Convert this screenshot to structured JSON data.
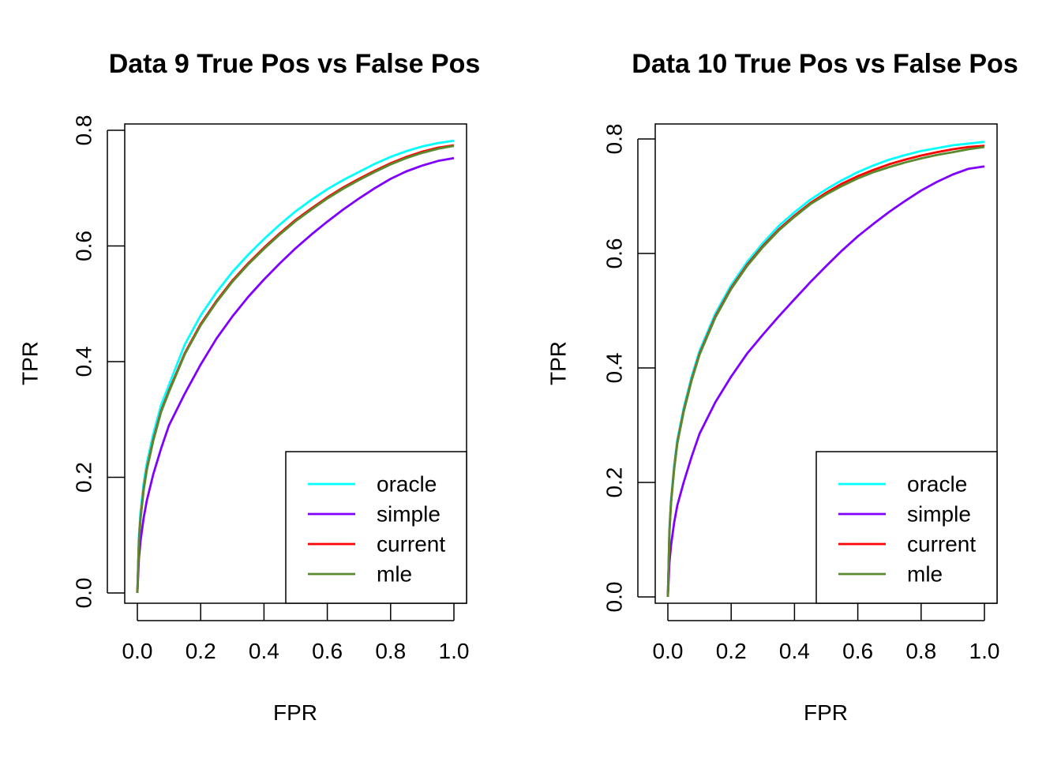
{
  "chart_data": [
    {
      "type": "line",
      "title": "Data 9 True Pos vs False Pos",
      "xlabel": "FPR",
      "ylabel": "TPR",
      "xlim": [
        0,
        1
      ],
      "ylim": [
        0,
        0.8
      ],
      "xticks": [
        "0.0",
        "0.2",
        "0.4",
        "0.6",
        "0.8",
        "1.0"
      ],
      "yticks": [
        "0.0",
        "0.2",
        "0.4",
        "0.6",
        "0.8"
      ],
      "legend_position": "bottom-right",
      "x": [
        0.0,
        0.005,
        0.01,
        0.02,
        0.03,
        0.05,
        0.075,
        0.1,
        0.15,
        0.2,
        0.25,
        0.3,
        0.35,
        0.4,
        0.45,
        0.5,
        0.55,
        0.6,
        0.65,
        0.7,
        0.75,
        0.8,
        0.85,
        0.9,
        0.95,
        1.0
      ],
      "series": [
        {
          "name": "oracle",
          "color": "#00FFFF",
          "values": [
            0.0,
            0.1,
            0.14,
            0.19,
            0.225,
            0.275,
            0.325,
            0.36,
            0.43,
            0.48,
            0.52,
            0.555,
            0.585,
            0.612,
            0.637,
            0.66,
            0.68,
            0.698,
            0.714,
            0.728,
            0.742,
            0.754,
            0.764,
            0.772,
            0.778,
            0.782
          ]
        },
        {
          "name": "simple",
          "color": "#8000FF",
          "values": [
            0.0,
            0.06,
            0.09,
            0.13,
            0.16,
            0.205,
            0.25,
            0.29,
            0.345,
            0.395,
            0.44,
            0.478,
            0.512,
            0.542,
            0.57,
            0.596,
            0.62,
            0.642,
            0.663,
            0.682,
            0.7,
            0.716,
            0.729,
            0.739,
            0.747,
            0.752
          ]
        },
        {
          "name": "current",
          "color": "#FF0000",
          "values": [
            0.0,
            0.09,
            0.13,
            0.18,
            0.215,
            0.265,
            0.315,
            0.35,
            0.415,
            0.465,
            0.505,
            0.54,
            0.57,
            0.597,
            0.622,
            0.645,
            0.665,
            0.684,
            0.701,
            0.716,
            0.73,
            0.743,
            0.754,
            0.763,
            0.77,
            0.774
          ]
        },
        {
          "name": "mle",
          "color": "#5A8A2E",
          "values": [
            0.0,
            0.088,
            0.128,
            0.178,
            0.213,
            0.263,
            0.313,
            0.348,
            0.413,
            0.463,
            0.503,
            0.538,
            0.568,
            0.595,
            0.62,
            0.643,
            0.663,
            0.682,
            0.699,
            0.714,
            0.728,
            0.741,
            0.752,
            0.761,
            0.768,
            0.773
          ]
        }
      ]
    },
    {
      "type": "line",
      "title": "Data 10 True Pos vs False Pos",
      "xlabel": "FPR",
      "ylabel": "TPR",
      "xlim": [
        0,
        1
      ],
      "ylim": [
        0,
        0.8
      ],
      "xticks": [
        "0.0",
        "0.2",
        "0.4",
        "0.6",
        "0.8",
        "1.0"
      ],
      "yticks": [
        "0.0",
        "0.2",
        "0.4",
        "0.6",
        "0.8"
      ],
      "legend_position": "bottom-right",
      "x": [
        0.0,
        0.005,
        0.01,
        0.02,
        0.03,
        0.05,
        0.075,
        0.1,
        0.15,
        0.2,
        0.25,
        0.3,
        0.35,
        0.4,
        0.45,
        0.5,
        0.55,
        0.6,
        0.65,
        0.7,
        0.75,
        0.8,
        0.85,
        0.9,
        0.95,
        1.0
      ],
      "series": [
        {
          "name": "oracle",
          "color": "#00FFFF",
          "values": [
            0.0,
            0.12,
            0.17,
            0.23,
            0.275,
            0.33,
            0.385,
            0.43,
            0.495,
            0.545,
            0.585,
            0.618,
            0.648,
            0.672,
            0.694,
            0.712,
            0.728,
            0.742,
            0.754,
            0.764,
            0.772,
            0.779,
            0.784,
            0.789,
            0.792,
            0.795
          ]
        },
        {
          "name": "simple",
          "color": "#8000FF",
          "values": [
            0.0,
            0.06,
            0.09,
            0.13,
            0.16,
            0.2,
            0.245,
            0.285,
            0.34,
            0.385,
            0.425,
            0.458,
            0.49,
            0.52,
            0.55,
            0.578,
            0.605,
            0.63,
            0.652,
            0.673,
            0.692,
            0.71,
            0.725,
            0.738,
            0.748,
            0.752
          ]
        },
        {
          "name": "current",
          "color": "#FF0000",
          "values": [
            0.0,
            0.115,
            0.165,
            0.225,
            0.27,
            0.325,
            0.38,
            0.425,
            0.49,
            0.54,
            0.58,
            0.613,
            0.642,
            0.666,
            0.688,
            0.706,
            0.722,
            0.735,
            0.746,
            0.756,
            0.764,
            0.771,
            0.777,
            0.782,
            0.786,
            0.788
          ]
        },
        {
          "name": "mle",
          "color": "#5A8A2E",
          "values": [
            0.0,
            0.113,
            0.163,
            0.223,
            0.268,
            0.323,
            0.378,
            0.423,
            0.488,
            0.538,
            0.578,
            0.611,
            0.64,
            0.664,
            0.686,
            0.703,
            0.718,
            0.731,
            0.742,
            0.751,
            0.759,
            0.766,
            0.772,
            0.777,
            0.782,
            0.786
          ]
        }
      ]
    }
  ]
}
